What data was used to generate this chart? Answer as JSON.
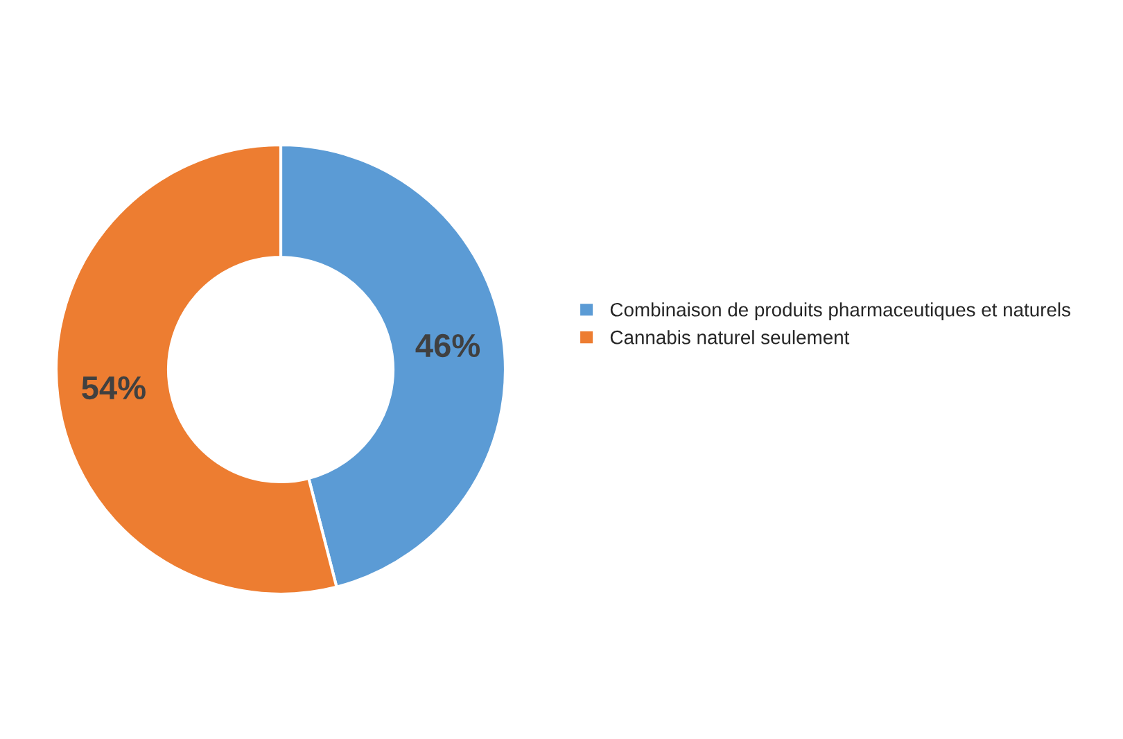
{
  "chart_data": {
    "type": "donut",
    "categories": [
      "Combinaison de produits pharmaceutiques et naturels",
      "Cannabis naturel seulement"
    ],
    "values": [
      46,
      54
    ],
    "colors": [
      "#5b9bd5",
      "#ed7d31"
    ],
    "value_labels": [
      "46%",
      "54%"
    ],
    "legend": "right"
  }
}
